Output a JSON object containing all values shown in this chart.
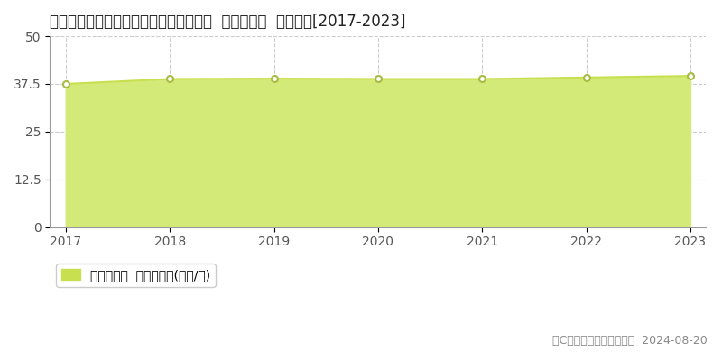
{
  "title": "愛知県愛知郡東郷町白鳥２丁目４番３外  基準地価格  地価推移[2017-2023]",
  "years": [
    2017,
    2018,
    2019,
    2020,
    2021,
    2022,
    2023
  ],
  "values": [
    37.5,
    38.8,
    38.9,
    38.8,
    38.8,
    39.2,
    39.6
  ],
  "ylim": [
    0,
    50
  ],
  "yticks": [
    0,
    12.5,
    25,
    37.5,
    50
  ],
  "line_color": "#c8e050",
  "fill_color": "#d4ea78",
  "fill_alpha": 1.0,
  "marker_color": "#ffffff",
  "marker_edge_color": "#aabb44",
  "bg_color": "#ffffff",
  "plot_bg_color": "#ffffff",
  "grid_color": "#cccccc",
  "legend_label": "基準地価格  平均坪単価(万円/坪)",
  "legend_marker_color": "#c8e050",
  "copyright_text": "（C）土地価格ドットコム  2024-08-20",
  "title_fontsize": 12,
  "axis_fontsize": 10,
  "legend_fontsize": 10,
  "copyright_fontsize": 9
}
